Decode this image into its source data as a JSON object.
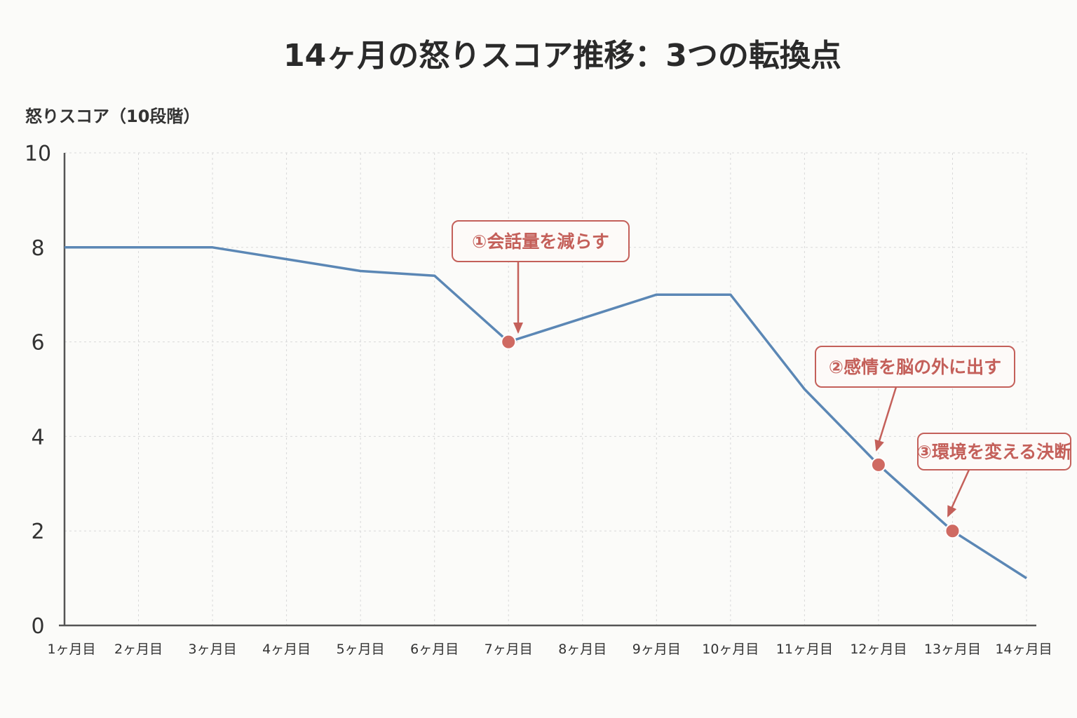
{
  "chart_data": {
    "type": "line",
    "title": "14ヶ月の怒りスコア推移：3つの転換点",
    "ylabel": "怒りスコア（10段階）",
    "xlabel": "",
    "ylim": [
      0,
      10
    ],
    "yticks": [
      0,
      2,
      4,
      6,
      8,
      10
    ],
    "categories": [
      "1ヶ月目",
      "2ヶ月目",
      "3ヶ月目",
      "4ヶ月目",
      "5ヶ月目",
      "6ヶ月目",
      "7ヶ月目",
      "8ヶ月目",
      "9ヶ月目",
      "10ヶ月目",
      "11ヶ月目",
      "12ヶ月目",
      "13ヶ月目",
      "14ヶ月目"
    ],
    "values": [
      8.0,
      8.0,
      8.0,
      7.75,
      7.5,
      7.4,
      6.0,
      6.5,
      7.0,
      7.0,
      5.0,
      3.4,
      2.0,
      1.0
    ],
    "grid": true,
    "colors": {
      "line": "#5b87b5",
      "annotation": "#c4605a",
      "marker": "#cf6a62"
    },
    "annotations": [
      {
        "label": "①会話量を減らす",
        "x": "7ヶ月目",
        "y": 6.0
      },
      {
        "label": "②感情を脳の外に出す",
        "x": "12ヶ月目",
        "y": 3.4
      },
      {
        "label": "③環境を変える決断",
        "x": "13ヶ月目",
        "y": 2.0
      }
    ]
  }
}
